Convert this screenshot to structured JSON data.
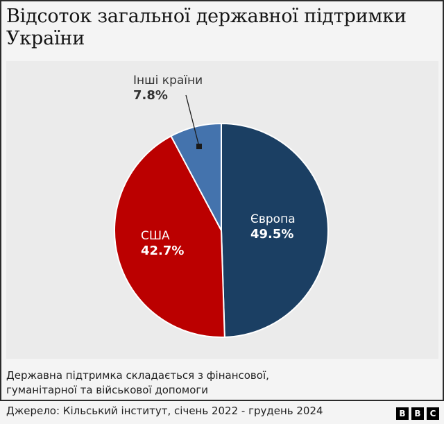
{
  "title": "Відсоток загальної державної підтримки України",
  "chart_data": {
    "type": "pie",
    "title": "Відсоток загальної державної підтримки України",
    "start_angle": "12 o'clock, clockwise",
    "slices": [
      {
        "label": "Європа",
        "value": 49.5,
        "value_label": "49.5%",
        "color": "#1b3f63"
      },
      {
        "label": "США",
        "value": 42.7,
        "value_label": "42.7%",
        "color": "#bb0000"
      },
      {
        "label": "Інші країни",
        "value": 7.8,
        "value_label": "7.8%",
        "color": "#4473ad"
      }
    ],
    "legend": "none (direct labels)"
  },
  "labels": {
    "europe": {
      "name": "Європа",
      "value": "49.5%"
    },
    "usa": {
      "name": "США",
      "value": "42.7%"
    },
    "other": {
      "name": "Інші країни",
      "value": "7.8%"
    }
  },
  "note": {
    "line1": "Державна підтримка складається з фінансової,",
    "line2": "гуманітарної та військової допомоги"
  },
  "source": "Джерело: Кільський інститут, січень 2022 - грудень 2024",
  "logo": [
    "B",
    "B",
    "C"
  ]
}
